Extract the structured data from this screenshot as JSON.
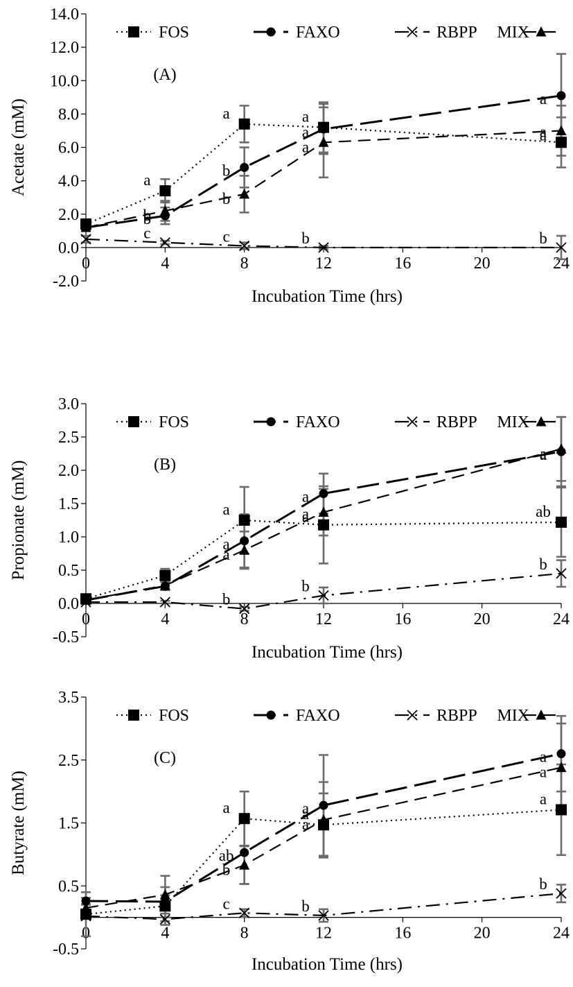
{
  "chart_data": [
    {
      "type": "line",
      "panel_label": "(A)",
      "xlabel": "Incubation Time (hrs)",
      "ylabel": "Acetate (mM)",
      "x": [
        0,
        4,
        8,
        12,
        24
      ],
      "xticks": [
        "0",
        "4",
        "8",
        "12",
        "16",
        "20",
        "24"
      ],
      "xlim": [
        0,
        24
      ],
      "ylim": [
        -2.0,
        14.0
      ],
      "yticks": [
        "-2.0",
        "0.0",
        "2.0",
        "4.0",
        "6.0",
        "8.0",
        "10.0",
        "12.0",
        "14.0"
      ],
      "legend": "top",
      "series": [
        {
          "name": "FOS",
          "values": [
            1.4,
            3.4,
            7.4,
            7.2,
            6.3
          ],
          "err": [
            0.3,
            0.7,
            1.1,
            1.5,
            1.5
          ],
          "labels": [
            "",
            "a",
            "a",
            "a",
            "a"
          ]
        },
        {
          "name": "FAXO",
          "values": [
            1.2,
            1.9,
            4.8,
            7.1,
            9.1
          ],
          "err": [
            0.2,
            0.5,
            1.2,
            1.5,
            2.5
          ],
          "labels": [
            "",
            "b",
            "b",
            "a",
            "a"
          ]
        },
        {
          "name": "RBPP",
          "values": [
            0.5,
            0.3,
            0.1,
            0.0,
            0.0
          ],
          "err": [
            0.2,
            0.1,
            0.2,
            0.1,
            0.7
          ],
          "labels": [
            "",
            "c",
            "c",
            "b",
            "b"
          ]
        },
        {
          "name": "MIX",
          "values": [
            1.2,
            2.2,
            3.2,
            6.3,
            7.0
          ],
          "err": [
            0.2,
            0.6,
            1.1,
            2.1,
            1.5
          ],
          "labels": [
            "",
            "b",
            "b",
            "a",
            "a"
          ]
        }
      ]
    },
    {
      "type": "line",
      "panel_label": "(B)",
      "xlabel": "Incubation Time (hrs)",
      "ylabel": "Propionate (mM)",
      "x": [
        0,
        4,
        8,
        12,
        24
      ],
      "xticks": [
        "0",
        "4",
        "8",
        "12",
        "16",
        "20",
        "24"
      ],
      "xlim": [
        0,
        24
      ],
      "ylim": [
        -0.5,
        3.0
      ],
      "yticks": [
        "-0.5",
        "0.0",
        "0.5",
        "1.0",
        "1.5",
        "2.0",
        "2.5",
        "3.0"
      ],
      "legend": "top",
      "series": [
        {
          "name": "FOS",
          "values": [
            0.07,
            0.42,
            1.25,
            1.18,
            1.22
          ],
          "err": [
            0.02,
            0.1,
            0.5,
            0.58,
            0.52
          ],
          "labels": [
            "",
            "",
            "a",
            "a",
            "ab"
          ]
        },
        {
          "name": "FAXO",
          "values": [
            0.05,
            0.26,
            0.94,
            1.65,
            2.28
          ],
          "err": [
            0.02,
            0.06,
            0.4,
            0.3,
            0.52
          ],
          "labels": [
            "",
            "",
            "a",
            "a",
            "a"
          ]
        },
        {
          "name": "RBPP",
          "values": [
            0.02,
            0.02,
            -0.08,
            0.12,
            0.45
          ],
          "err": [
            0.02,
            0.02,
            0.03,
            0.12,
            0.2
          ],
          "labels": [
            "",
            "",
            "b",
            "b",
            "b"
          ]
        },
        {
          "name": "MIX",
          "values": [
            0.05,
            0.27,
            0.8,
            1.37,
            2.32
          ],
          "err": [
            0.02,
            0.06,
            0.28,
            0.35,
            0.48
          ],
          "labels": [
            "",
            "",
            "a",
            "a",
            "a"
          ]
        }
      ]
    },
    {
      "type": "line",
      "panel_label": "(C)",
      "xlabel": "Incubation Time (hrs)",
      "ylabel": "Butyrate (mM)",
      "x": [
        0,
        4,
        8,
        12,
        24
      ],
      "xticks": [
        "0",
        "4",
        "8",
        "12",
        "16",
        "20",
        "24"
      ],
      "xlim": [
        0,
        24
      ],
      "ylim": [
        -0.5,
        3.5
      ],
      "yticks": [
        "-0.5",
        "0.5",
        "1.5",
        "2.5",
        "3.5"
      ],
      "legend": "top",
      "series": [
        {
          "name": "FOS",
          "values": [
            0.05,
            0.18,
            1.57,
            1.47,
            1.71
          ],
          "err": [
            0.35,
            0.3,
            0.43,
            0.5,
            0.72
          ],
          "labels": [
            "",
            "",
            "a",
            "a",
            "a"
          ]
        },
        {
          "name": "FAXO",
          "values": [
            0.26,
            0.25,
            1.03,
            1.78,
            2.6
          ],
          "err": [
            0.05,
            0.1,
            0.5,
            0.8,
            0.6
          ],
          "labels": [
            "",
            "",
            "ab",
            "a",
            "a"
          ]
        },
        {
          "name": "RBPP",
          "values": [
            0.02,
            -0.03,
            0.07,
            0.03,
            0.38
          ],
          "err": [
            0.03,
            0.03,
            0.06,
            0.1,
            0.14
          ],
          "labels": [
            "",
            "",
            "c",
            "b",
            "b"
          ]
        },
        {
          "name": "MIX",
          "values": [
            0.15,
            0.36,
            0.83,
            1.55,
            2.38
          ],
          "err": [
            0.05,
            0.3,
            0.3,
            0.6,
            0.7
          ],
          "labels": [
            "",
            "",
            "b",
            "a",
            "a"
          ]
        }
      ]
    }
  ]
}
